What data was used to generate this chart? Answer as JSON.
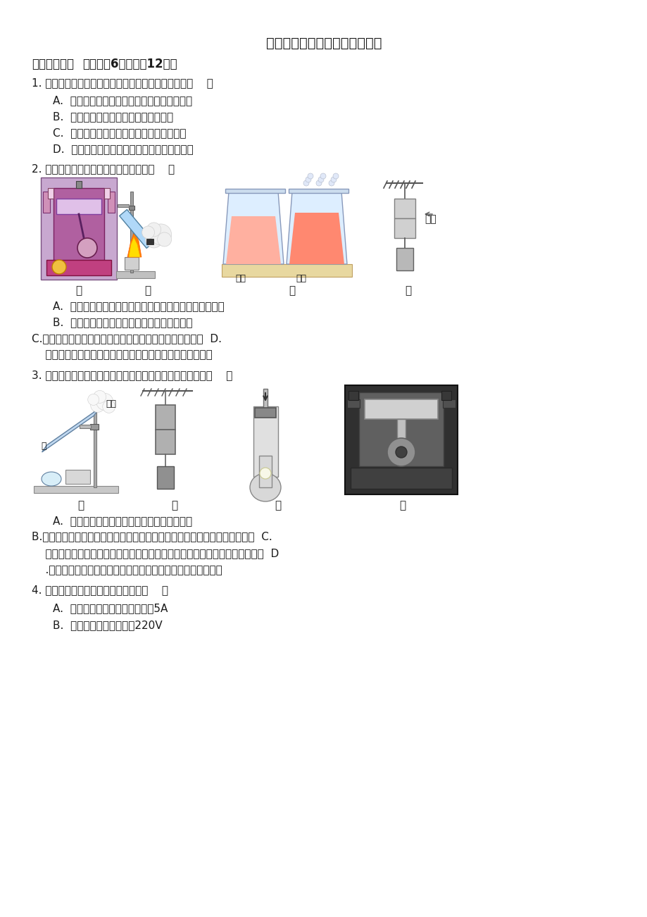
{
  "bg_color": "#ffffff",
  "title": "九年级上学期物理期末模拟试卷",
  "section1_header": "一、单选题：本大题共6小题，共12分。",
  "q1_prefix": "1. 关于电功、电能和电功率的下列说法中，错误的是（    ）",
  "q1_A": "A.  千瓦时是电功的单位，千瓦是电功率的单位",
  "q1_B": "B.  电功率是表示电流做功快慢的物理量",
  "q1_C": "C.  单位时间内电流做功越多，电功率就越大",
  "q1_D": "D.  用电器消耗的电能越多，它的电功率就越大",
  "q2_prefix": "2. 关于下面四幅图的说法中，正确的是（    ）",
  "q2_A": "A.  甲图：这属于汽车的压缩冲程，是将内能转化为机械能",
  "q2_B": "B.  乙图：试管内空气推开瓶塞，空气内能增加",
  "q2_C": "C.丙图：在两杯水中放入红糖，红糖在热水中溶化得慢一些  D.",
  "q2_D": "    丁图：悬挂重物不能把两块铅块分开，说明分子间存在引力",
  "q3_prefix": "3. 如图所示，关于热现象的四幅图，下列选项解释正确的是（    ）",
  "q3_A": "A.  甲图塞子被弹出是因为白雾给它传递了热量",
  "q3_B": "B.乙图两个压紧的铅块能吊起一个重物，两铅块未被拉开说明分子间存在斥力  C.",
  "q3_C": "    丙图活塞下压，通过做功改变管内空气内能，使其温度升高，达到棉花的燃点  D",
  "q3_D": "    .丁图的内燃机的压缩冲程，该冲程将活塞的机械能转化为内能",
  "q4_prefix": "4. 下列数据的估计中最接近实际的是（    ）",
  "q4_A": "A.  白炽灯正常工作时的电流约为5A",
  "q4_B": "B.  一节干电池的电压约为220V",
  "label_jia": "甲",
  "label_yi": "乙",
  "label_bing": "丙",
  "label_ding": "丁",
  "label_qianzhu": "铅柱",
  "label_lengshui": "冷水",
  "label_reshui": "热水",
  "label_baiwu": "白雾",
  "label_shui": "水"
}
